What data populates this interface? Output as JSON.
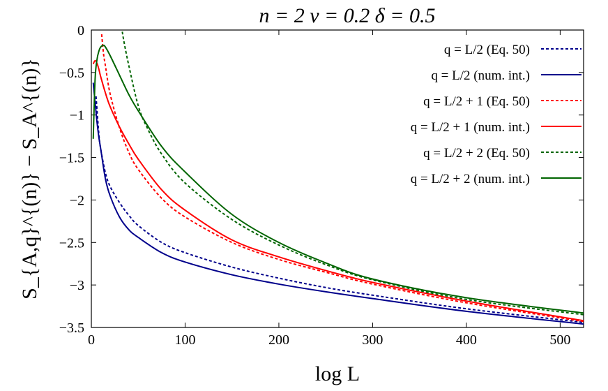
{
  "chart_data": {
    "type": "line",
    "title": "n = 2   ν = 0.2   δ = 0.5",
    "xlabel": "log L",
    "ylabel": "S_{A,q}^{(n)} − S_A^{(n)}",
    "xlim": [
      0,
      525
    ],
    "ylim": [
      -3.5,
      0
    ],
    "xticks": [
      0,
      100,
      200,
      300,
      400,
      500
    ],
    "yticks": [
      0,
      -0.5,
      -1,
      -1.5,
      -2,
      -2.5,
      -3,
      -3.5
    ],
    "xtick_labels": [
      "0",
      "100",
      "200",
      "300",
      "400",
      "500"
    ],
    "ytick_labels": [
      "0",
      "−0.5",
      "−1",
      "−1.5",
      "−2",
      "−2.5",
      "−3",
      "−3.5"
    ],
    "grid": false,
    "legend_position": "top-right",
    "series": [
      {
        "name": "q = L/2 (Eq. 50)",
        "color": "#00008b",
        "dash": "dotted",
        "x": [
          5,
          8,
          10,
          15,
          20,
          30,
          40,
          50,
          75,
          100,
          150,
          200,
          250,
          300,
          400,
          525
        ],
        "y": [
          -0.78,
          -1.22,
          -1.4,
          -1.68,
          -1.84,
          -2.03,
          -2.18,
          -2.3,
          -2.5,
          -2.62,
          -2.79,
          -2.92,
          -3.03,
          -3.12,
          -3.28,
          -3.44
        ]
      },
      {
        "name": "q = L/2 (num. int.)",
        "color": "#00008b",
        "dash": "solid",
        "x": [
          2,
          4,
          6,
          8,
          10,
          15,
          20,
          30,
          40,
          50,
          75,
          100,
          150,
          200,
          250,
          300,
          400,
          525
        ],
        "y": [
          -0.62,
          -0.85,
          -1.08,
          -1.26,
          -1.4,
          -1.75,
          -1.95,
          -2.2,
          -2.35,
          -2.44,
          -2.62,
          -2.73,
          -2.88,
          -2.99,
          -3.08,
          -3.16,
          -3.31,
          -3.46
        ]
      },
      {
        "name": "q = L/2 + 1 (Eq. 50)",
        "color": "#ff0000",
        "dash": "dotted",
        "x": [
          11,
          13,
          15,
          20,
          30,
          40,
          50,
          75,
          100,
          150,
          200,
          250,
          300,
          400,
          525
        ],
        "y": [
          -0.05,
          -0.28,
          -0.42,
          -0.75,
          -1.15,
          -1.44,
          -1.64,
          -1.98,
          -2.2,
          -2.5,
          -2.7,
          -2.85,
          -2.99,
          -3.21,
          -3.43
        ]
      },
      {
        "name": "q = L/2 + 1 (num. int.)",
        "color": "#ff0000",
        "dash": "solid",
        "x": [
          2,
          4,
          6,
          8,
          10,
          15,
          20,
          30,
          40,
          50,
          75,
          100,
          150,
          200,
          250,
          300,
          400,
          525
        ],
        "y": [
          -0.4,
          -0.36,
          -0.39,
          -0.46,
          -0.55,
          -0.74,
          -0.9,
          -1.14,
          -1.34,
          -1.52,
          -1.88,
          -2.12,
          -2.47,
          -2.67,
          -2.83,
          -2.97,
          -3.19,
          -3.42
        ]
      },
      {
        "name": "q = L/2 + 2 (Eq. 50)",
        "color": "#006400",
        "dash": "dotted",
        "x": [
          33,
          35,
          40,
          50,
          60,
          75,
          100,
          150,
          200,
          250,
          300,
          400,
          525
        ],
        "y": [
          -0.02,
          -0.15,
          -0.42,
          -0.89,
          -1.16,
          -1.46,
          -1.8,
          -2.23,
          -2.53,
          -2.76,
          -2.94,
          -3.17,
          -3.35
        ]
      },
      {
        "name": "q = L/2 + 2 (num. int.)",
        "color": "#006400",
        "dash": "solid",
        "x": [
          2,
          4,
          6,
          8,
          10,
          13,
          15,
          20,
          30,
          40,
          50,
          75,
          100,
          150,
          200,
          250,
          300,
          400,
          525
        ],
        "y": [
          -1.28,
          -0.58,
          -0.35,
          -0.25,
          -0.2,
          -0.18,
          -0.2,
          -0.3,
          -0.53,
          -0.76,
          -0.95,
          -1.37,
          -1.67,
          -2.17,
          -2.5,
          -2.74,
          -2.93,
          -3.15,
          -3.33
        ]
      }
    ]
  }
}
